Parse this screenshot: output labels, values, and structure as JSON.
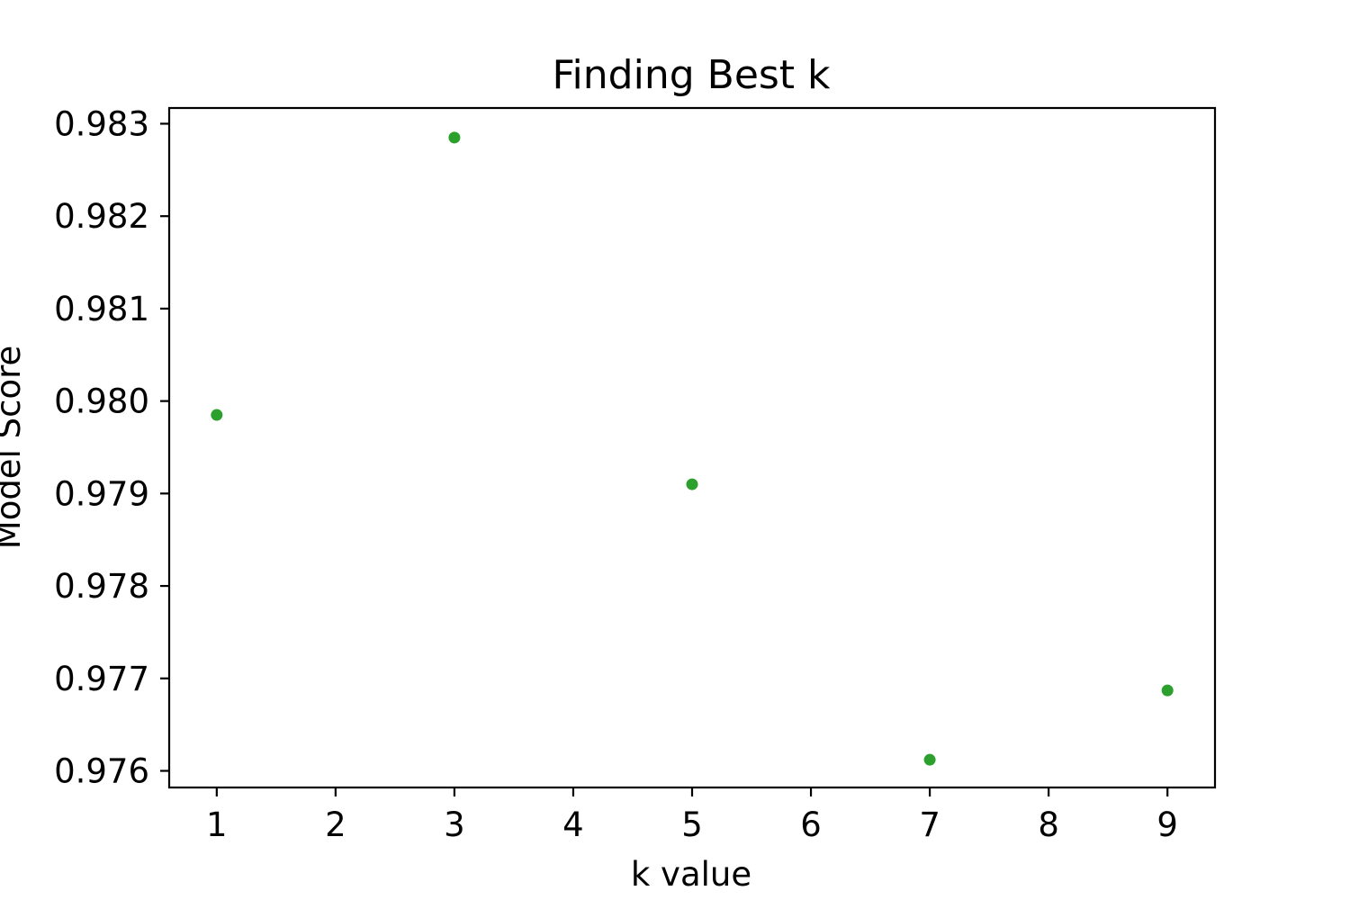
{
  "chart_data": {
    "type": "scatter",
    "title": "Finding Best k",
    "xlabel": "k value",
    "ylabel": "Model Score",
    "x": [
      1,
      3,
      5,
      7,
      9
    ],
    "y": [
      0.97985,
      0.98285,
      0.9791,
      0.97612,
      0.97687
    ],
    "xlim": [
      0.6,
      9.4
    ],
    "ylim": [
      0.97582,
      0.98317
    ],
    "xticks": [
      1,
      2,
      3,
      4,
      5,
      6,
      7,
      8,
      9
    ],
    "yticks": [
      0.976,
      0.977,
      0.978,
      0.979,
      0.98,
      0.981,
      0.982,
      0.983
    ],
    "xtick_labels": [
      "1",
      "2",
      "3",
      "4",
      "5",
      "6",
      "7",
      "8",
      "9"
    ],
    "ytick_labels": [
      "0.976",
      "0.977",
      "0.978",
      "0.979",
      "0.980",
      "0.981",
      "0.982",
      "0.983"
    ],
    "grid": false,
    "marker_color": "#2ca02c"
  }
}
